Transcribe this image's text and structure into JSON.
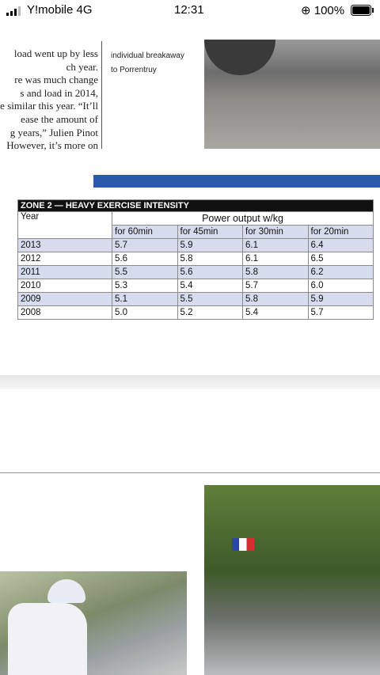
{
  "status_bar": {
    "carrier": "Y!mobile 4G",
    "time": "12:31",
    "battery": "100%"
  },
  "article": {
    "left_column": [
      "load went up by less",
      "ch year.",
      "re was much change",
      "s and load in 2014,",
      "e similar this year. “It’ll",
      "ease the amount of",
      "g years,” Julien Pinot",
      "However, it’s more on"
    ],
    "caption": [
      "individual breakaway",
      "to Porrentruy"
    ]
  },
  "table": {
    "title": "ZONE 2 — HEAVY EXERCISE INTENSITY",
    "year_header": "Year",
    "group_header": "Power output w/kg",
    "columns": [
      "for 60min",
      "for 45min",
      "for 30min",
      "for 20min"
    ],
    "rows": [
      [
        "2013",
        "5.7",
        "5.9",
        "6.1",
        "6.4"
      ],
      [
        "2012",
        "5.6",
        "5.8",
        "6.1",
        "6.5"
      ],
      [
        "2011",
        "5.5",
        "5.6",
        "5.8",
        "6.2"
      ],
      [
        "2010",
        "5.3",
        "5.4",
        "5.7",
        "6.0"
      ],
      [
        "2009",
        "5.1",
        "5.5",
        "5.8",
        "5.9"
      ],
      [
        "2008",
        "5.0",
        "5.2",
        "5.4",
        "5.7"
      ]
    ]
  }
}
